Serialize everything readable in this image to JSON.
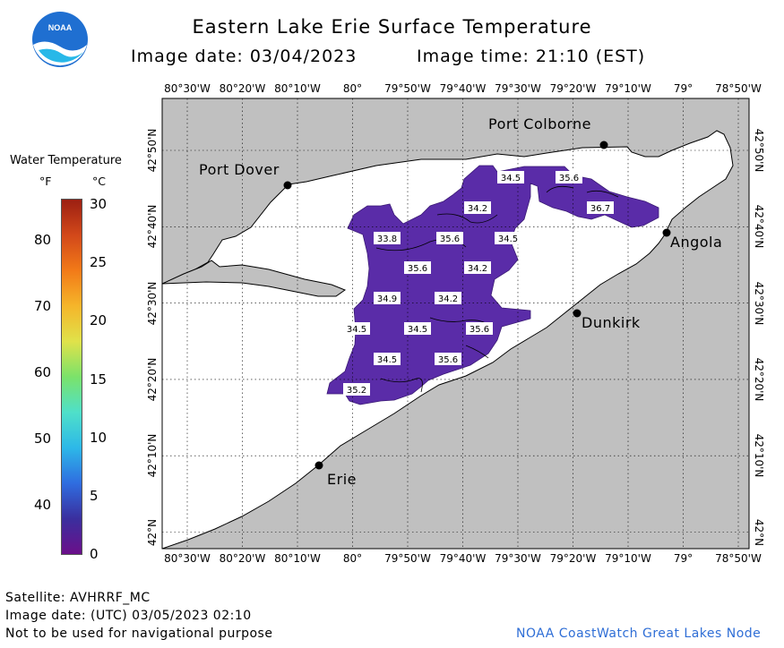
{
  "title": "Eastern Lake Erie Surface Temperature",
  "image_date_label": "Image date: 03/04/2023",
  "image_time_label": "Image time: 21:10 (EST)",
  "logo_text": "NOAA",
  "legend": {
    "title": "Water Temperature",
    "unit_f": "°F",
    "unit_c": "°C",
    "f_ticks": [
      "80",
      "70",
      "60",
      "50",
      "40"
    ],
    "c_ticks": [
      "30",
      "25",
      "20",
      "15",
      "10",
      "5",
      "0"
    ],
    "colors": [
      "#6b0f8a",
      "#3a2f9e",
      "#2f6de0",
      "#2db8e8",
      "#4fe0c9",
      "#7be26a",
      "#e0e24a",
      "#f5b52a",
      "#f27a18",
      "#d2481a",
      "#9c1f12"
    ]
  },
  "longitudes": [
    "80°30'W",
    "80°20'W",
    "80°10'W",
    "80°",
    "79°50'W",
    "79°40'W",
    "79°30'W",
    "79°20'W",
    "79°10'W",
    "79°",
    "78°50'W"
  ],
  "latitudes": [
    "42°50'N",
    "42°40'N",
    "42°30'N",
    "42°20'N",
    "42°10'N",
    "42°N"
  ],
  "places": {
    "port_colborne": "Port Colborne",
    "port_dover": "Port Dover",
    "angola": "Angola",
    "dunkirk": "Dunkirk",
    "erie": "Erie"
  },
  "temperature_labels": [
    "34.5",
    "35.6",
    "34.2",
    "36.7",
    "33.8",
    "35.6",
    "34.5",
    "35.6",
    "34.2",
    "34.9",
    "34.2",
    "34.5",
    "34.5",
    "35.6",
    "34.5",
    "35.6",
    "35.2"
  ],
  "colors": {
    "land": "#c0c0c0",
    "water": "#ffffff",
    "sst_fill": "#5a2ca8",
    "sst_fill_dark": "#4a1f96"
  },
  "footer": {
    "satellite": "Satellite: AVHRRF_MC",
    "utc_date": "Image date: (UTC) 03/05/2023  02:10",
    "disclaimer": "Not to be used for navigational purpose",
    "credit": "NOAA CoastWatch Great Lakes Node"
  }
}
